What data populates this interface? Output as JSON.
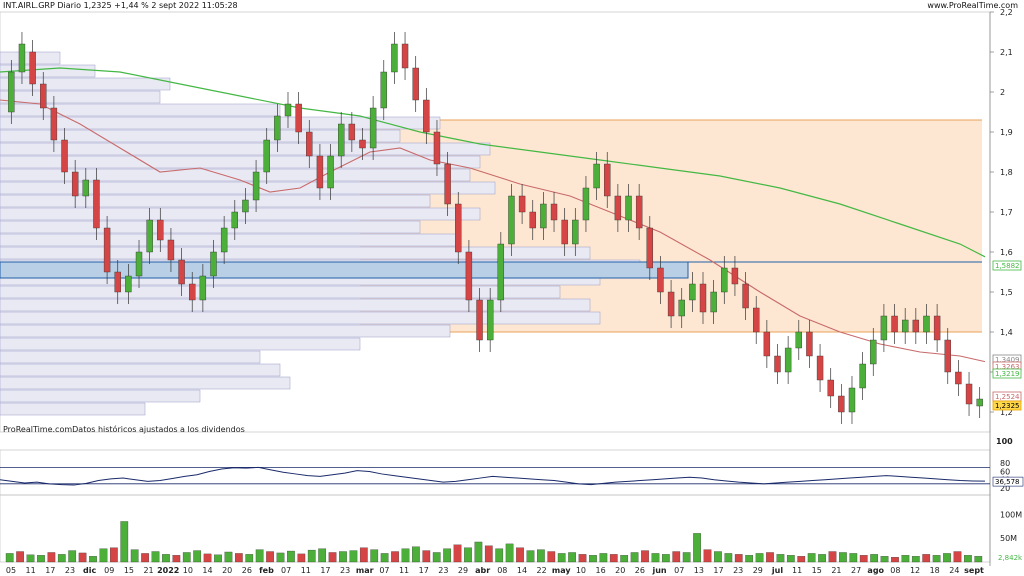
{
  "header": {
    "title": "INT.AIRL.GRP Diario 1,2325 +1,44 % 2 sept 2022 11:05:28",
    "source": "www.ProRealTime.com"
  },
  "note": "ProRealTime.comDatos históricos ajustados a los dividendos",
  "colors": {
    "up": "#4caf3a",
    "down": "#d64545",
    "ma_long": "#44b844",
    "ma_mid": "#c86a6a",
    "support_band": "#1f5fa8",
    "range_fill": "#fde7d2",
    "range_border": "#e8a25a",
    "volume_profile": "#e9e9f4",
    "oscillator": "#1a2a6a"
  },
  "chart_data": [
    {
      "type": "candlestick",
      "title": "INT.AIRL.GRP Diario",
      "y_ticks": [
        "2,2",
        "2,1",
        "2",
        "1,9",
        "1,8",
        "1,7",
        "1,6",
        "1,5",
        "1,4",
        "1,3",
        "1,2"
      ],
      "ylim": [
        1.15,
        2.2
      ],
      "x_ticks": [
        {
          "label": "05",
          "bold": false
        },
        {
          "label": "11",
          "bold": false
        },
        {
          "label": "17",
          "bold": false
        },
        {
          "label": "23",
          "bold": false
        },
        {
          "label": "dic",
          "bold": true
        },
        {
          "label": "09",
          "bold": false
        },
        {
          "label": "15",
          "bold": false
        },
        {
          "label": "21",
          "bold": false
        },
        {
          "label": "2022",
          "bold": true
        },
        {
          "label": "10",
          "bold": false
        },
        {
          "label": "14",
          "bold": false
        },
        {
          "label": "20",
          "bold": false
        },
        {
          "label": "26",
          "bold": false
        },
        {
          "label": "feb",
          "bold": true
        },
        {
          "label": "07",
          "bold": false
        },
        {
          "label": "11",
          "bold": false
        },
        {
          "label": "17",
          "bold": false
        },
        {
          "label": "23",
          "bold": false
        },
        {
          "label": "mar",
          "bold": true
        },
        {
          "label": "07",
          "bold": false
        },
        {
          "label": "11",
          "bold": false
        },
        {
          "label": "17",
          "bold": false
        },
        {
          "label": "23",
          "bold": false
        },
        {
          "label": "29",
          "bold": false
        },
        {
          "label": "abr",
          "bold": true
        },
        {
          "label": "08",
          "bold": false
        },
        {
          "label": "14",
          "bold": false
        },
        {
          "label": "22",
          "bold": false
        },
        {
          "label": "may",
          "bold": true
        },
        {
          "label": "10",
          "bold": false
        },
        {
          "label": "16",
          "bold": false
        },
        {
          "label": "20",
          "bold": false
        },
        {
          "label": "26",
          "bold": false
        },
        {
          "label": "jun",
          "bold": true
        },
        {
          "label": "07",
          "bold": false
        },
        {
          "label": "13",
          "bold": false
        },
        {
          "label": "17",
          "bold": false
        },
        {
          "label": "23",
          "bold": false
        },
        {
          "label": "29",
          "bold": false
        },
        {
          "label": "jul",
          "bold": true
        },
        {
          "label": "11",
          "bold": false
        },
        {
          "label": "15",
          "bold": false
        },
        {
          "label": "21",
          "bold": false
        },
        {
          "label": "27",
          "bold": false
        },
        {
          "label": "ago",
          "bold": true
        },
        {
          "label": "08",
          "bold": false
        },
        {
          "label": "12",
          "bold": false
        },
        {
          "label": "18",
          "bold": false
        },
        {
          "label": "24",
          "bold": false
        },
        {
          "label": "sept",
          "bold": true
        }
      ],
      "price_tags": [
        {
          "value": "1,5882",
          "color": "#44b844"
        },
        {
          "value": "1,3409",
          "color": "#888888"
        },
        {
          "value": "1,3263",
          "color": "#c86a6a"
        },
        {
          "value": "1,3219",
          "color": "#44b844"
        },
        {
          "value": "1,2524",
          "color": "#c86a6a"
        },
        {
          "value": "1,2325",
          "color": "#e8a400"
        }
      ],
      "support_zone": [
        1.535,
        1.575
      ],
      "range_zone": [
        1.4,
        1.93
      ],
      "ma_long_points": [
        [
          0,
          2.05
        ],
        [
          60,
          2.06
        ],
        [
          120,
          2.05
        ],
        [
          180,
          2.02
        ],
        [
          240,
          1.99
        ],
        [
          300,
          1.96
        ],
        [
          360,
          1.94
        ],
        [
          420,
          1.9
        ],
        [
          480,
          1.87
        ],
        [
          540,
          1.85
        ],
        [
          600,
          1.83
        ],
        [
          660,
          1.81
        ],
        [
          720,
          1.79
        ],
        [
          780,
          1.76
        ],
        [
          840,
          1.72
        ],
        [
          900,
          1.67
        ],
        [
          960,
          1.62
        ],
        [
          985,
          1.588
        ]
      ],
      "ma_mid_points": [
        [
          0,
          1.98
        ],
        [
          40,
          1.97
        ],
        [
          80,
          1.92
        ],
        [
          120,
          1.86
        ],
        [
          160,
          1.8
        ],
        [
          200,
          1.81
        ],
        [
          240,
          1.78
        ],
        [
          270,
          1.75
        ],
        [
          300,
          1.76
        ],
        [
          330,
          1.8
        ],
        [
          370,
          1.85
        ],
        [
          400,
          1.86
        ],
        [
          430,
          1.83
        ],
        [
          470,
          1.81
        ],
        [
          520,
          1.77
        ],
        [
          570,
          1.74
        ],
        [
          610,
          1.7
        ],
        [
          660,
          1.65
        ],
        [
          710,
          1.58
        ],
        [
          760,
          1.5
        ],
        [
          800,
          1.44
        ],
        [
          840,
          1.4
        ],
        [
          880,
          1.37
        ],
        [
          920,
          1.35
        ],
        [
          960,
          1.34
        ],
        [
          985,
          1.326
        ]
      ],
      "candles": [
        [
          1.95,
          2.05
        ],
        [
          2.05,
          2.12
        ],
        [
          2.1,
          2.02
        ],
        [
          2.02,
          1.96
        ],
        [
          1.96,
          1.88
        ],
        [
          1.88,
          1.8
        ],
        [
          1.8,
          1.74
        ],
        [
          1.74,
          1.78
        ],
        [
          1.78,
          1.66
        ],
        [
          1.66,
          1.55
        ],
        [
          1.55,
          1.5
        ],
        [
          1.5,
          1.54
        ],
        [
          1.54,
          1.6
        ],
        [
          1.6,
          1.68
        ],
        [
          1.68,
          1.63
        ],
        [
          1.63,
          1.58
        ],
        [
          1.58,
          1.52
        ],
        [
          1.52,
          1.48
        ],
        [
          1.48,
          1.54
        ],
        [
          1.54,
          1.6
        ],
        [
          1.6,
          1.66
        ],
        [
          1.66,
          1.7
        ],
        [
          1.7,
          1.73
        ],
        [
          1.73,
          1.8
        ],
        [
          1.8,
          1.88
        ],
        [
          1.88,
          1.94
        ],
        [
          1.94,
          1.97
        ],
        [
          1.97,
          1.9
        ],
        [
          1.9,
          1.84
        ],
        [
          1.84,
          1.76
        ],
        [
          1.76,
          1.84
        ],
        [
          1.84,
          1.92
        ],
        [
          1.92,
          1.88
        ],
        [
          1.88,
          1.86
        ],
        [
          1.86,
          1.96
        ],
        [
          1.96,
          2.05
        ],
        [
          2.05,
          2.12
        ],
        [
          2.12,
          2.06
        ],
        [
          2.06,
          1.98
        ],
        [
          1.98,
          1.9
        ],
        [
          1.9,
          1.82
        ],
        [
          1.82,
          1.72
        ],
        [
          1.72,
          1.6
        ],
        [
          1.6,
          1.48
        ],
        [
          1.48,
          1.38
        ],
        [
          1.38,
          1.48
        ],
        [
          1.48,
          1.62
        ],
        [
          1.62,
          1.74
        ],
        [
          1.74,
          1.7
        ],
        [
          1.7,
          1.66
        ],
        [
          1.66,
          1.72
        ],
        [
          1.72,
          1.68
        ],
        [
          1.68,
          1.62
        ],
        [
          1.62,
          1.68
        ],
        [
          1.68,
          1.76
        ],
        [
          1.76,
          1.82
        ],
        [
          1.82,
          1.74
        ],
        [
          1.74,
          1.68
        ],
        [
          1.68,
          1.74
        ],
        [
          1.74,
          1.66
        ],
        [
          1.66,
          1.56
        ],
        [
          1.56,
          1.5
        ],
        [
          1.5,
          1.44
        ],
        [
          1.44,
          1.48
        ],
        [
          1.48,
          1.52
        ],
        [
          1.52,
          1.45
        ],
        [
          1.45,
          1.5
        ],
        [
          1.5,
          1.56
        ],
        [
          1.56,
          1.52
        ],
        [
          1.52,
          1.46
        ],
        [
          1.46,
          1.4
        ],
        [
          1.4,
          1.34
        ],
        [
          1.34,
          1.3
        ],
        [
          1.3,
          1.36
        ],
        [
          1.36,
          1.4
        ],
        [
          1.4,
          1.34
        ],
        [
          1.34,
          1.28
        ],
        [
          1.28,
          1.24
        ],
        [
          1.24,
          1.2
        ],
        [
          1.2,
          1.26
        ],
        [
          1.26,
          1.32
        ],
        [
          1.32,
          1.38
        ],
        [
          1.38,
          1.44
        ],
        [
          1.44,
          1.4
        ],
        [
          1.4,
          1.43
        ],
        [
          1.43,
          1.4
        ],
        [
          1.4,
          1.44
        ],
        [
          1.44,
          1.38
        ],
        [
          1.38,
          1.3
        ],
        [
          1.3,
          1.27
        ],
        [
          1.27,
          1.22
        ],
        [
          1.215,
          1.2325
        ]
      ]
    },
    {
      "type": "line",
      "title": "",
      "y_ticks": [
        "80",
        "60",
        "40",
        "20"
      ],
      "ylim": [
        15,
        100
      ],
      "top_label": "100",
      "current_value": "36,578",
      "levels": [
        70,
        30
      ],
      "values": [
        40,
        36,
        32,
        34,
        30,
        28,
        27,
        31,
        38,
        42,
        44,
        40,
        36,
        38,
        43,
        48,
        52,
        60,
        66,
        69,
        68,
        70,
        64,
        58,
        54,
        50,
        48,
        52,
        56,
        62,
        60,
        54,
        50,
        46,
        42,
        38,
        34,
        36,
        40,
        44,
        48,
        46,
        44,
        42,
        40,
        38,
        34,
        30,
        28,
        31,
        34,
        36,
        38,
        40,
        42,
        44,
        46,
        44,
        40,
        37,
        34,
        32,
        30,
        32,
        34,
        36,
        38,
        40,
        42,
        44,
        46,
        48,
        50,
        48,
        46,
        44,
        42,
        40,
        38,
        37,
        36.578
      ]
    },
    {
      "type": "bar",
      "title": "",
      "y_ticks": [
        "100M",
        "50M"
      ],
      "ylim": [
        0,
        130
      ],
      "scale_label": "2,842k",
      "values": [
        18,
        22,
        15,
        14,
        20,
        16,
        24,
        19,
        12,
        28,
        30,
        85,
        26,
        18,
        22,
        16,
        14,
        20,
        24,
        17,
        15,
        21,
        18,
        16,
        26,
        22,
        19,
        23,
        17,
        25,
        28,
        20,
        22,
        24,
        30,
        26,
        18,
        22,
        28,
        32,
        24,
        20,
        28,
        36,
        30,
        42,
        34,
        28,
        38,
        30,
        24,
        26,
        22,
        18,
        20,
        16,
        14,
        18,
        16,
        14,
        20,
        24,
        18,
        16,
        22,
        20,
        60,
        26,
        22,
        18,
        16,
        14,
        18,
        20,
        16,
        14,
        12,
        18,
        16,
        22,
        20,
        18,
        14,
        16,
        12,
        10,
        14,
        12,
        16,
        14,
        18,
        22,
        14,
        12
      ]
    }
  ]
}
